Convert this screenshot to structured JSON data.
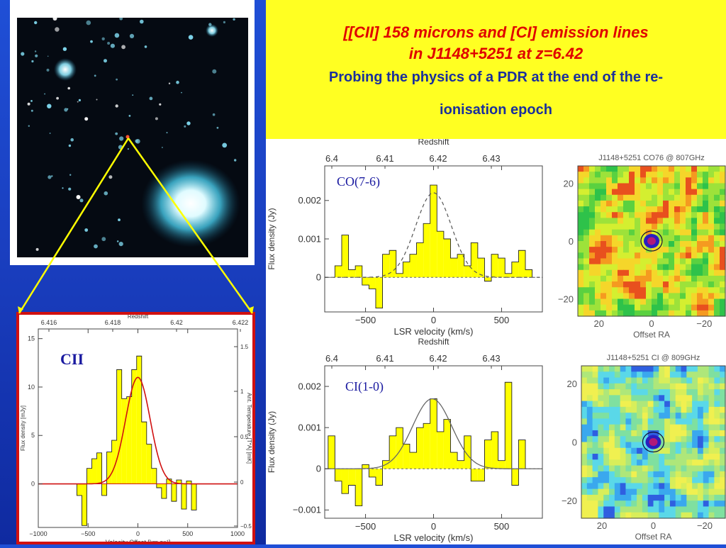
{
  "slide": {
    "title_line1": "[[CII] 158 microns and [CI] emission lines",
    "title_line2": "in J1148+5251 at  z=6.42",
    "subtitle_line1": "Probing the physics of a PDR at the end of the re-",
    "subtitle_line2": "ionisation epoch"
  },
  "colors": {
    "background": "#1a3fc0",
    "banner": "#ffff22",
    "title": "#e00000",
    "subtitle": "#1a2f9c",
    "bars": "#ffff00",
    "cii_fit": "#d01010",
    "cii_frame": "#d01010",
    "pointer_lines": "#ffff00"
  },
  "chart_data": [
    {
      "type": "bar",
      "label": "CII",
      "top_axis": {
        "label": "Redshift",
        "ticks": [
          "6.416",
          "6.418",
          "6.42",
          "6.422"
        ]
      },
      "xlabel": "Velocity Offset [km s⁻¹]",
      "xticks": [
        "−1000",
        "−500",
        "0",
        "500",
        "1000"
      ],
      "xlim": [
        -1000,
        1000
      ],
      "ylabel": "Flux density [mJy]",
      "yticks": [
        "0",
        "5",
        "10",
        "15"
      ],
      "ylim": [
        -4.5,
        16
      ],
      "right_ylabel": "Ant. Temperature [T*A] [mK]",
      "right_yticks": [
        "1.5",
        "1",
        "0.5",
        "0",
        "−0.5"
      ],
      "fit": {
        "peak": 11.0,
        "center": 0,
        "fwhm": 290
      },
      "x": [
        -587.5,
        -537.5,
        -487.5,
        -437.5,
        -387.5,
        -337.5,
        -287.5,
        -237.5,
        -187.5,
        -137.5,
        -87.5,
        -37.5,
        12.5,
        62.5,
        112.5,
        162.5,
        212.5,
        262.5,
        312.5,
        362.5,
        412.5,
        462.5,
        512.5,
        562.5
      ],
      "values": [
        -1.2,
        -4.3,
        1.6,
        2.6,
        3.2,
        -1.2,
        3.3,
        4.5,
        11.8,
        8.8,
        9.0,
        11.8,
        13.2,
        6.4,
        4.1,
        1.6,
        -0.4,
        -1.5,
        0.5,
        -1.8,
        0.4,
        -2.6,
        0.3,
        -2.7
      ]
    },
    {
      "type": "bar",
      "label": "CO(7-6)",
      "top_axis": {
        "label": "Redshift",
        "ticks": [
          "6.4",
          "6.41",
          "6.42",
          "6.43"
        ]
      },
      "xlabel": "LSR velocity (km/s)",
      "xticks": [
        "−500",
        "0",
        "500"
      ],
      "xlim": [
        -800,
        800
      ],
      "ylabel": "Flux density (Jy)",
      "yticks": [
        "0",
        "0.001",
        "0.002"
      ],
      "ylim": [
        -0.0009,
        0.0029
      ],
      "fit": {
        "peak": 0.0022,
        "center": 0,
        "fwhm": 310
      },
      "x": [
        -700,
        -650,
        -600,
        -550,
        -500,
        -450,
        -400,
        -350,
        -300,
        -250,
        -200,
        -150,
        -100,
        -50,
        0,
        50,
        100,
        150,
        200,
        250,
        300,
        350,
        400,
        450,
        500,
        550,
        600,
        650,
        700
      ],
      "values": [
        0.0003,
        0.0011,
        0.0002,
        0.0003,
        -0.0002,
        -0.0003,
        -0.0008,
        0.0006,
        0.0007,
        0.0001,
        0.0004,
        0.0006,
        0.0009,
        0.0014,
        0.0024,
        0.0012,
        0.001,
        0.0005,
        0.0006,
        0.0003,
        0.0009,
        0.0005,
        -0.0001,
        0.0006,
        0.0005,
        0.0001,
        0.0004,
        0.0007,
        0.0002
      ]
    },
    {
      "type": "bar",
      "label": "CI(1-0)",
      "top_axis": {
        "label": "Redshift",
        "ticks": [
          "6.4",
          "6.41",
          "6.42",
          "6.43"
        ]
      },
      "xlabel": "LSR velocity (km/s)",
      "xticks": [
        "−500",
        "0",
        "500"
      ],
      "xlim": [
        -800,
        800
      ],
      "ylabel": "Flux density (Jy)",
      "yticks": [
        "−0.001",
        "0",
        "0.001",
        "0.002"
      ],
      "ylim": [
        -0.0012,
        0.0025
      ],
      "fit": {
        "peak": 0.0017,
        "center": -10,
        "fwhm": 340
      },
      "x": [
        -750,
        -700,
        -650,
        -600,
        -550,
        -500,
        -450,
        -400,
        -350,
        -300,
        -250,
        -200,
        -150,
        -100,
        -50,
        0,
        50,
        100,
        150,
        200,
        250,
        300,
        350,
        400,
        450,
        500,
        550,
        600,
        650
      ],
      "values": [
        0.0008,
        -0.0003,
        -0.0006,
        -0.0004,
        -0.0009,
        0.0001,
        -0.0002,
        -0.0004,
        0.0002,
        0.0008,
        0.001,
        0.0006,
        0.0004,
        0.001,
        0.0011,
        0.0017,
        0.0009,
        0.0012,
        0.0004,
        0.0002,
        0.0008,
        -0.0003,
        -0.0003,
        0.0007,
        0.0009,
        0.0002,
        0.0021,
        -0.0004,
        0.0007
      ]
    },
    {
      "type": "heatmap",
      "title": "J1148+5251 CO76 @ 807GHz",
      "xlabel": "Offset RA",
      "xticks": [
        "20",
        "0",
        "−20"
      ],
      "yticks": [
        "20",
        "0",
        "−20"
      ],
      "xlim": [
        28,
        -28
      ],
      "ylim": [
        -26,
        26
      ],
      "source_offset": [
        0,
        0
      ]
    },
    {
      "type": "heatmap",
      "title": "J1148+5251 CI @ 809GHz",
      "xlabel": "Offset RA",
      "xticks": [
        "20",
        "0",
        "−20"
      ],
      "yticks": [
        "20",
        "0",
        "−20"
      ],
      "xlim": [
        28,
        -28
      ],
      "ylim": [
        -26,
        26
      ],
      "source_offset": [
        0,
        0
      ]
    }
  ]
}
